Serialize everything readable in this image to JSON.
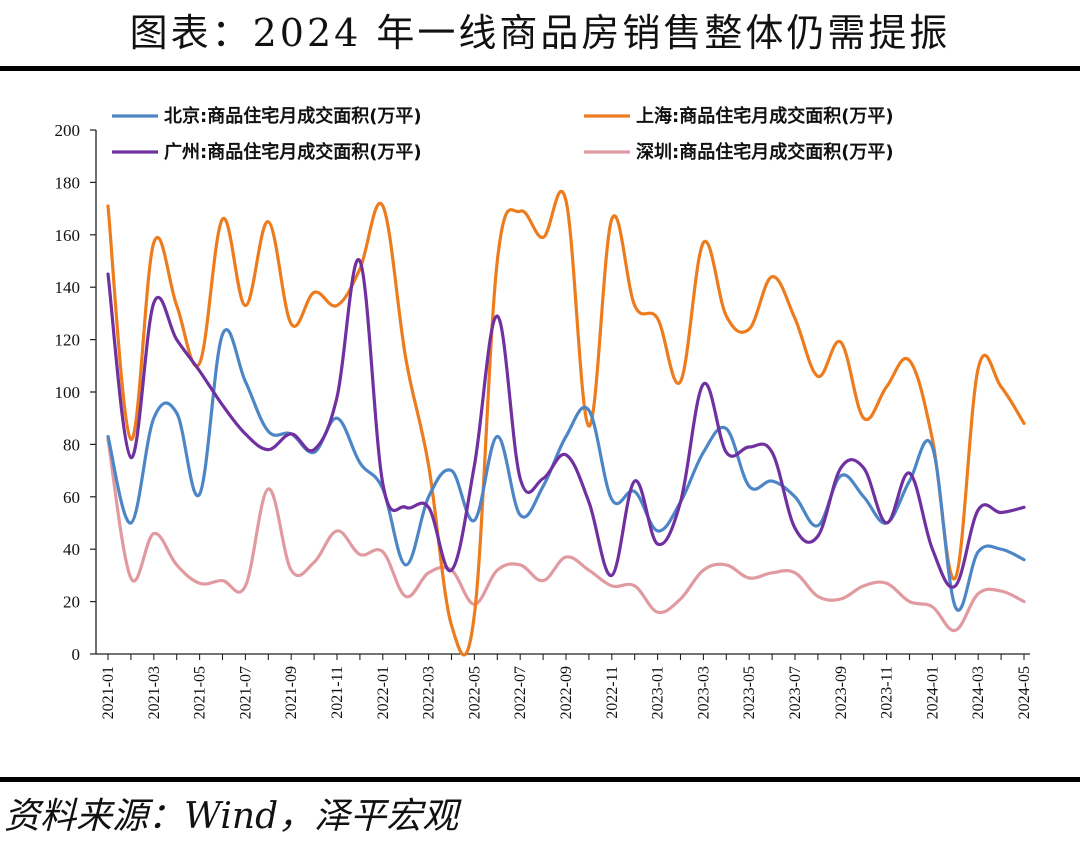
{
  "title": "图表：2024 年一线商品房销售整体仍需提振",
  "source": "资料来源：Wind，泽平宏观",
  "chart_data": {
    "type": "line",
    "ylim": [
      0,
      200
    ],
    "yticks": [
      0,
      20,
      40,
      60,
      80,
      100,
      120,
      140,
      160,
      180,
      200
    ],
    "x": [
      "2021-01",
      "2021-02",
      "2021-03",
      "2021-04",
      "2021-05",
      "2021-06",
      "2021-07",
      "2021-08",
      "2021-09",
      "2021-10",
      "2021-11",
      "2021-12",
      "2022-01",
      "2022-02",
      "2022-03",
      "2022-04",
      "2022-05",
      "2022-06",
      "2022-07",
      "2022-08",
      "2022-09",
      "2022-10",
      "2022-11",
      "2022-12",
      "2023-01",
      "2023-02",
      "2023-03",
      "2023-04",
      "2023-05",
      "2023-06",
      "2023-07",
      "2023-08",
      "2023-09",
      "2023-10",
      "2023-11",
      "2023-12",
      "2024-01",
      "2024-02",
      "2024-03",
      "2024-04",
      "2024-05"
    ],
    "xtick_labels": [
      "2021-01",
      "2021-03",
      "2021-05",
      "2021-07",
      "2021-09",
      "2021-11",
      "2022-01",
      "2022-03",
      "2022-05",
      "2022-07",
      "2022-09",
      "2022-11",
      "2023-01",
      "2023-03",
      "2023-05",
      "2023-07",
      "2023-09",
      "2023-11",
      "2024-01",
      "2024-03",
      "2024-05"
    ],
    "legend_position": "top",
    "series": [
      {
        "name": "北京:商品住宅月成交面积(万平)",
        "color": "#4d86c6",
        "values": [
          83,
          50,
          90,
          92,
          61,
          122,
          104,
          85,
          84,
          77,
          90,
          73,
          63,
          34,
          60,
          70,
          51,
          83,
          53,
          64,
          83,
          93,
          59,
          62,
          47,
          58,
          77,
          86,
          64,
          66,
          60,
          49,
          68,
          60,
          50,
          66,
          79,
          18,
          39,
          40,
          36
        ]
      },
      {
        "name": "上海:商品住宅月成交面积(万平)",
        "color": "#ec7c1e",
        "values": [
          171,
          82,
          157,
          133,
          111,
          166,
          133,
          165,
          126,
          138,
          133,
          147,
          171,
          113,
          72,
          11,
          15,
          150,
          169,
          159,
          173,
          87,
          166,
          133,
          128,
          104,
          157,
          129,
          124,
          144,
          128,
          106,
          119,
          90,
          102,
          112,
          82,
          29,
          109,
          102,
          88
        ]
      },
      {
        "name": "广州:商品住宅月成交面积(万平)",
        "color": "#7030a0",
        "values": [
          145,
          75,
          134,
          120,
          108,
          95,
          84,
          78,
          84,
          78,
          98,
          150,
          65,
          56,
          56,
          32,
          72,
          129,
          67,
          67,
          76,
          58,
          30,
          66,
          42,
          58,
          103,
          77,
          79,
          77,
          48,
          45,
          71,
          71,
          50,
          69,
          40,
          26,
          55,
          54,
          56
        ]
      },
      {
        "name": "深圳:商品住宅月成交面积(万平)",
        "color": "#e09aa0",
        "values": [
          82,
          29,
          46,
          34,
          27,
          28,
          26,
          63,
          32,
          35,
          47,
          38,
          39,
          22,
          31,
          32,
          19,
          32,
          34,
          28,
          37,
          32,
          26,
          26,
          16,
          21,
          32,
          34,
          29,
          31,
          31,
          22,
          21,
          26,
          27,
          20,
          18,
          9,
          23,
          24,
          20
        ]
      }
    ]
  }
}
